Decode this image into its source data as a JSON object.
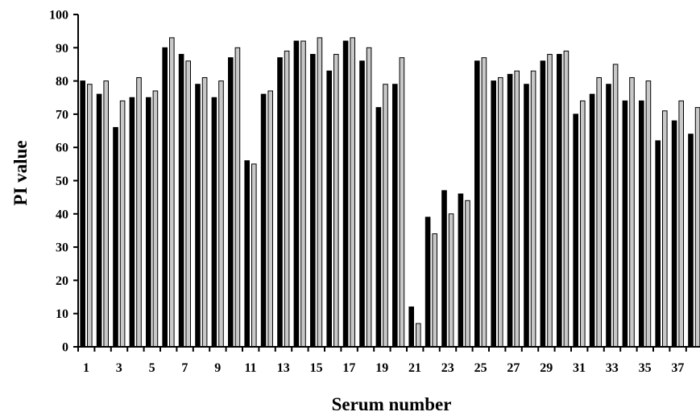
{
  "chart_data": {
    "type": "bar",
    "title": "",
    "xlabel": "Serum number",
    "ylabel": "PI value",
    "ylim": [
      0,
      100
    ],
    "yticks": [
      "0",
      "10",
      "20",
      "30",
      "40",
      "50",
      "60",
      "70",
      "80",
      "90",
      "100"
    ],
    "xtick_labels": [
      "1",
      "3",
      "5",
      "7",
      "9",
      "11",
      "13",
      "15",
      "17",
      "19",
      "21",
      "23",
      "25",
      "27",
      "29",
      "31",
      "33",
      "35",
      "37"
    ],
    "grid": false,
    "legend": false,
    "categories": [
      "1",
      "2",
      "3",
      "4",
      "5",
      "6",
      "7",
      "8",
      "9",
      "10",
      "11",
      "12",
      "13",
      "14",
      "15",
      "16",
      "17",
      "18",
      "19",
      "20",
      "21",
      "22",
      "23",
      "24",
      "25",
      "26",
      "27",
      "28",
      "29",
      "30",
      "31",
      "32",
      "33",
      "34",
      "35",
      "36",
      "37",
      "38"
    ],
    "series": [
      {
        "color": "#000000",
        "values": [
          80,
          76,
          66,
          75,
          75,
          90,
          88,
          79,
          75,
          87,
          56,
          76,
          87,
          92,
          88,
          83,
          92,
          86,
          72,
          79,
          12,
          39,
          47,
          46,
          86,
          80,
          82,
          79,
          86,
          88,
          70,
          76,
          79,
          74,
          74,
          62,
          68,
          64
        ]
      },
      {
        "color": "#c8c8c8",
        "values": [
          79,
          80,
          74,
          81,
          77,
          93,
          86,
          81,
          80,
          90,
          55,
          77,
          89,
          92,
          93,
          88,
          93,
          90,
          79,
          87,
          7,
          34,
          40,
          44,
          87,
          81,
          83,
          83,
          88,
          89,
          74,
          81,
          85,
          81,
          80,
          71,
          74,
          72
        ]
      }
    ]
  }
}
